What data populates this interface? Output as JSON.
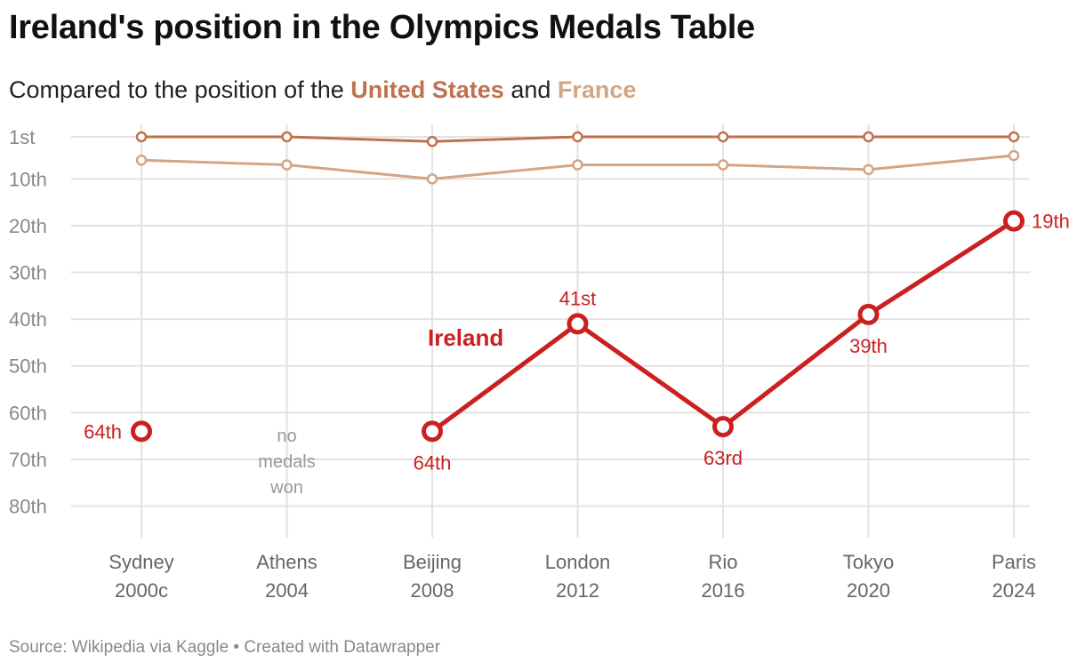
{
  "title": "Ireland's position in the Olympics Medals Table",
  "subtitle": {
    "prefix": "Compared to the position of the",
    "us": "United States",
    "and": "and",
    "fr": "France"
  },
  "source": "Source: Wikipedia via Kaggle • Created with Datawrapper",
  "colors": {
    "ireland": "#cc1f1f",
    "united_states": "#c0714f",
    "france": "#d4a584",
    "grid": "#e2e2e2"
  },
  "chart_data": {
    "type": "line",
    "title": "Ireland's position in the Olympics Medals Table",
    "y_inverted": true,
    "ylim": [
      1,
      86
    ],
    "y_ticks": [
      1,
      10,
      20,
      30,
      40,
      50,
      60,
      70,
      80
    ],
    "y_tick_labels": [
      "1st",
      "10th",
      "20th",
      "30th",
      "40th",
      "50th",
      "60th",
      "70th",
      "80th"
    ],
    "categories": [
      {
        "city": "Sydney",
        "year": "2000c"
      },
      {
        "city": "Athens",
        "year": "2004"
      },
      {
        "city": "Beijing",
        "year": "2008"
      },
      {
        "city": "London",
        "year": "2012"
      },
      {
        "city": "Rio",
        "year": "2016"
      },
      {
        "city": "Tokyo",
        "year": "2020"
      },
      {
        "city": "Paris",
        "year": "2024"
      }
    ],
    "series": [
      {
        "name": "United States",
        "values": [
          1,
          1,
          2,
          1,
          1,
          1,
          1
        ]
      },
      {
        "name": "France",
        "values": [
          6,
          7,
          10,
          7,
          7,
          8,
          5
        ]
      },
      {
        "name": "Ireland",
        "values": [
          64,
          null,
          64,
          41,
          63,
          39,
          19
        ],
        "labels": [
          "64th",
          "",
          "64th",
          "41st",
          "63rd",
          "39th",
          "19th"
        ]
      }
    ],
    "series_label": "Ireland",
    "annotation": [
      "no",
      "medals",
      "won"
    ]
  }
}
